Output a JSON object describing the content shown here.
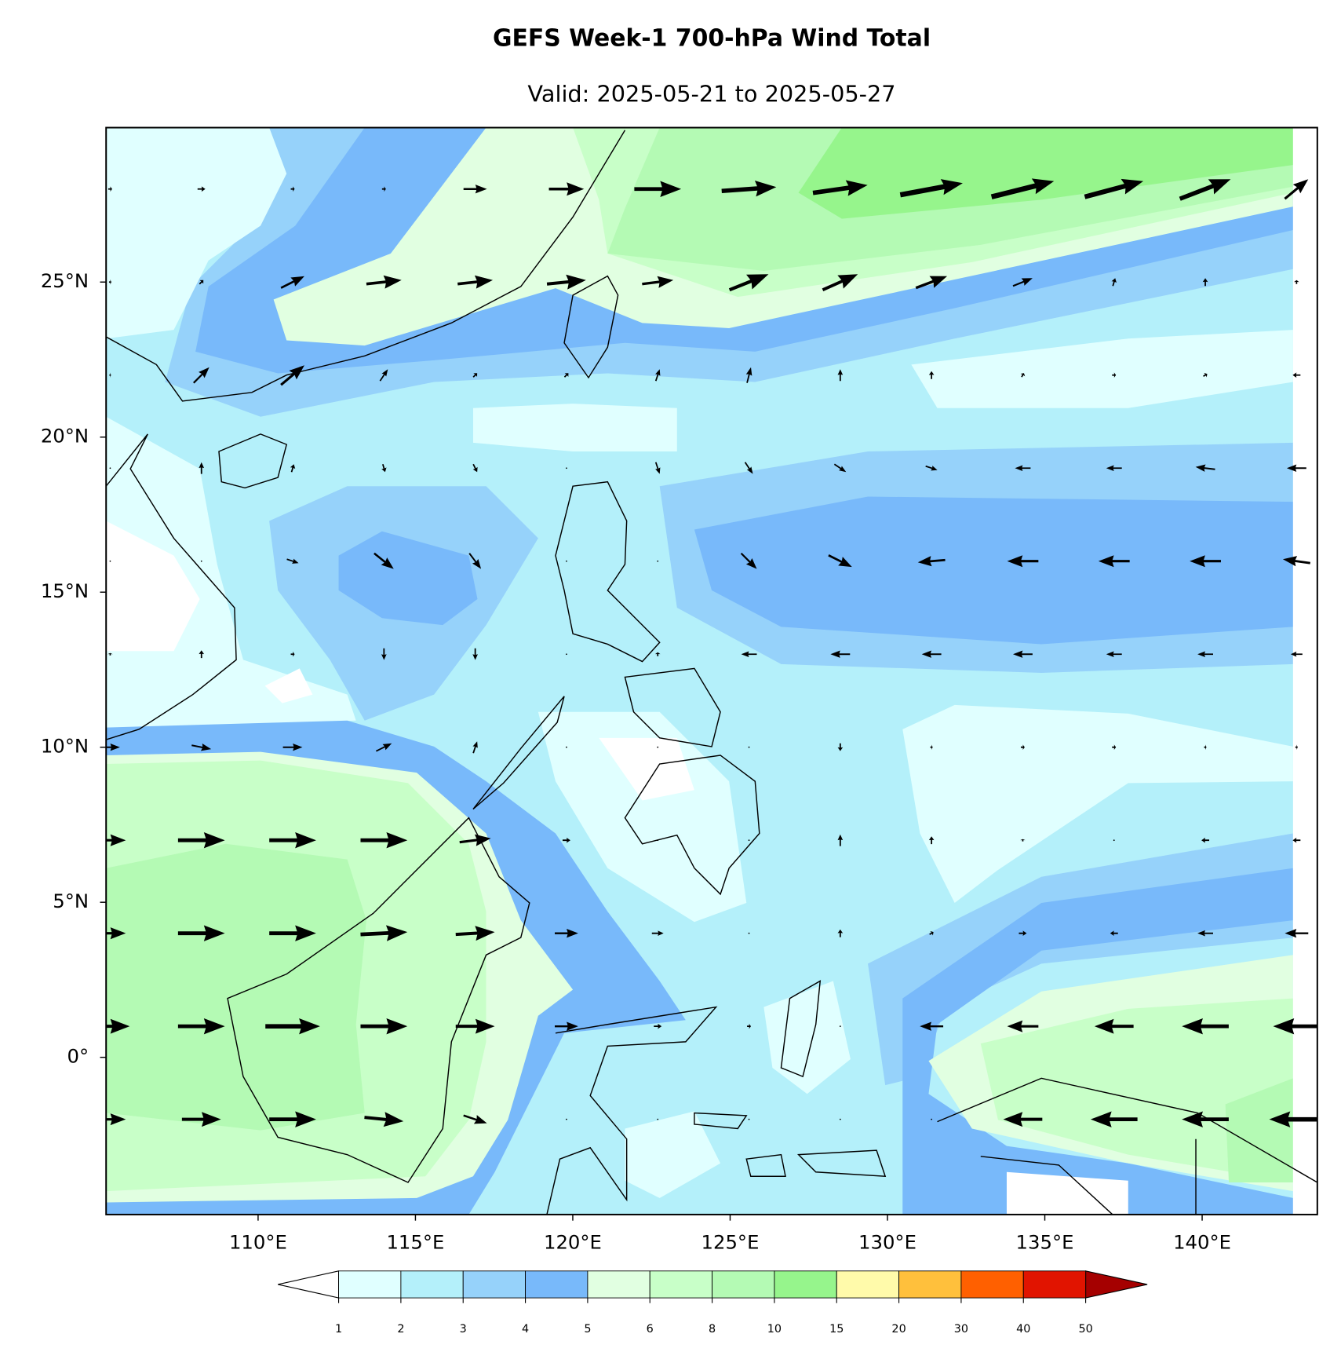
{
  "title": "GEFS Week-1 700-hPa Wind Total",
  "subtitle": "Valid: 2025-05-21 to 2025-05-27",
  "map": {
    "lon_range": [
      105.17,
      143.66
    ],
    "lat_range": [
      -5.07,
      29.98
    ],
    "lon_ticks": [
      {
        "value": 110,
        "label": "110°E"
      },
      {
        "value": 115,
        "label": "115°E"
      },
      {
        "value": 120,
        "label": "120°E"
      },
      {
        "value": 125,
        "label": "125°E"
      },
      {
        "value": 130,
        "label": "130°E"
      },
      {
        "value": 135,
        "label": "135°E"
      },
      {
        "value": 140,
        "label": "140°E"
      }
    ],
    "lat_ticks": [
      {
        "value": 0,
        "label": "0°"
      },
      {
        "value": 5,
        "label": "5°N"
      },
      {
        "value": 10,
        "label": "10°N"
      },
      {
        "value": 15,
        "label": "15°N"
      },
      {
        "value": 20,
        "label": "20°N"
      },
      {
        "value": 25,
        "label": "25°N"
      }
    ]
  },
  "colorbar": {
    "levels": [
      1,
      2,
      3,
      4,
      5,
      6,
      8,
      10,
      15,
      20,
      30,
      40,
      50
    ],
    "colors": [
      "#e0ffff",
      "#b4f0fa",
      "#96d2fa",
      "#78b9fa",
      "#e1ffe1",
      "#c8ffc8",
      "#b4fab4",
      "#96f58c",
      "#fffaaa",
      "#ffc03c",
      "#ff6000",
      "#e11400"
    ],
    "under_color": "#ffffff",
    "over_color": "#a50000"
  },
  "wind": {
    "lon": [
      105.3,
      108.2,
      111.1,
      114.0,
      116.9,
      119.8,
      122.7,
      125.6,
      128.5,
      131.4,
      134.3,
      137.2,
      140.1,
      143.0
    ],
    "lat": [
      28,
      25,
      22,
      19,
      16,
      13,
      10,
      7,
      4,
      1,
      -2
    ],
    "u": [
      [
        0.5,
        1,
        0.5,
        0.5,
        3,
        4.5,
        6,
        7,
        7,
        8,
        8,
        7.5,
        6.5,
        3
      ],
      [
        0.3,
        0.5,
        3,
        4.5,
        4.5,
        5,
        4,
        5,
        4.5,
        4,
        2.5,
        0.3,
        0,
        0
      ],
      [
        0.2,
        2,
        3,
        1,
        0.5,
        0.5,
        0.5,
        0.5,
        0,
        0,
        0.3,
        0.5,
        0.5,
        -1
      ],
      [
        0,
        0,
        0.3,
        0.3,
        0.5,
        0,
        0.5,
        1,
        1.5,
        1.5,
        -2,
        -2,
        -2.5,
        -2.5
      ],
      [
        0,
        0,
        1.5,
        2.5,
        1.5,
        0,
        0,
        2,
        3,
        -3.5,
        -4,
        -4,
        -4,
        -3.5
      ],
      [
        0,
        0,
        0.5,
        0,
        0,
        0,
        0,
        -2,
        -2.5,
        -2.5,
        -2.5,
        -2,
        -2,
        -1.5
      ],
      [
        2.5,
        2.5,
        2.5,
        2,
        0.5,
        0,
        0,
        0,
        0,
        0.3,
        0.5,
        0.5,
        0.3,
        0.3
      ],
      [
        4,
        6,
        6,
        6,
        4,
        1,
        0,
        0,
        0,
        0,
        0,
        0,
        -1,
        -1
      ],
      [
        4,
        6,
        6,
        6,
        5,
        3,
        1.5,
        0,
        0,
        0.5,
        1,
        -1,
        -2,
        -3
      ],
      [
        5,
        6,
        7,
        6,
        5,
        3,
        1,
        0.5,
        0,
        -3,
        -4,
        -5,
        -6,
        -6
      ],
      [
        4,
        5,
        6,
        5,
        3,
        0,
        0,
        0,
        0,
        0,
        -5,
        -6,
        -6,
        -7
      ]
    ],
    "v": [
      [
        0,
        0,
        0,
        0,
        0,
        0,
        0,
        0.5,
        1,
        1.5,
        2,
        2,
        2.5,
        2.5
      ],
      [
        0,
        0.5,
        1.5,
        0.5,
        0.5,
        0.5,
        0.5,
        2,
        2,
        1.5,
        1,
        1,
        1,
        0.5
      ],
      [
        0,
        2,
        2.5,
        1.5,
        0.5,
        0.5,
        1.5,
        2,
        1.5,
        1,
        0.5,
        0,
        0.3,
        0
      ],
      [
        0,
        1.5,
        1,
        -1,
        -1,
        0,
        -1.5,
        -1.5,
        -1,
        -0.5,
        0,
        0,
        0.3,
        0
      ],
      [
        0,
        0,
        -0.5,
        -2,
        -2,
        0,
        0,
        -2,
        -1.5,
        -0.3,
        0,
        0,
        0,
        0.5
      ],
      [
        0.3,
        1,
        0,
        -1.5,
        -1.5,
        0,
        0.5,
        0,
        0,
        0,
        0,
        0,
        0,
        0
      ],
      [
        0,
        -0.5,
        0,
        1,
        1.5,
        0,
        0,
        0,
        -1,
        0,
        0,
        0,
        0,
        0
      ],
      [
        0,
        0,
        0,
        0,
        0.5,
        0,
        0,
        0,
        1.5,
        1,
        0.3,
        0,
        0,
        0
      ],
      [
        0,
        0,
        0,
        0.3,
        0.3,
        0,
        0,
        0,
        1,
        0.3,
        0,
        0,
        0,
        0
      ],
      [
        0,
        0,
        0,
        0,
        0,
        0,
        0,
        0,
        0,
        0,
        0,
        0,
        0,
        0
      ],
      [
        0,
        0,
        0,
        -0.5,
        -1,
        0,
        0,
        0,
        0,
        0,
        0,
        0,
        0,
        0
      ]
    ]
  }
}
